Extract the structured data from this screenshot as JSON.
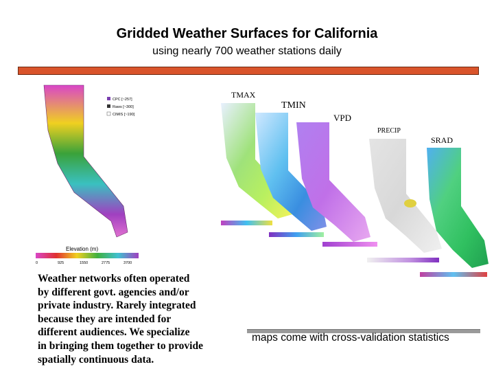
{
  "title": "Gridded Weather Surfaces for California",
  "subtitle": "using nearly 700 weather stations daily",
  "legend": {
    "items": [
      {
        "label": "CPC",
        "count": "[~257]",
        "color": "#7a3fb0"
      },
      {
        "label": "Raws",
        "count": "[~300]",
        "color": "#333333"
      },
      {
        "label": "CIMIS",
        "count": "[~190]",
        "color": "#e0e0e0"
      }
    ],
    "elevation_label": "Elevation (m)",
    "elevation_ticks": [
      "0",
      "925",
      "1550",
      "2775",
      "3700"
    ]
  },
  "map_labels": [
    "TMAX",
    "TMIN",
    "VPD",
    "PRECIP",
    "SRAD"
  ],
  "body_text_lines": [
    "Weather networks often operated",
    "by different govt. agencies and/or",
    "private industry. Rarely integrated",
    "because they are intended for",
    "different audiences. We specialize",
    "in bringing them together to provide",
    "spatially continuous data."
  ],
  "caption": "maps come with cross-validation statistics",
  "colors": {
    "accent_bar": "#d9542b",
    "caption_bar": "#9a9a9a"
  }
}
